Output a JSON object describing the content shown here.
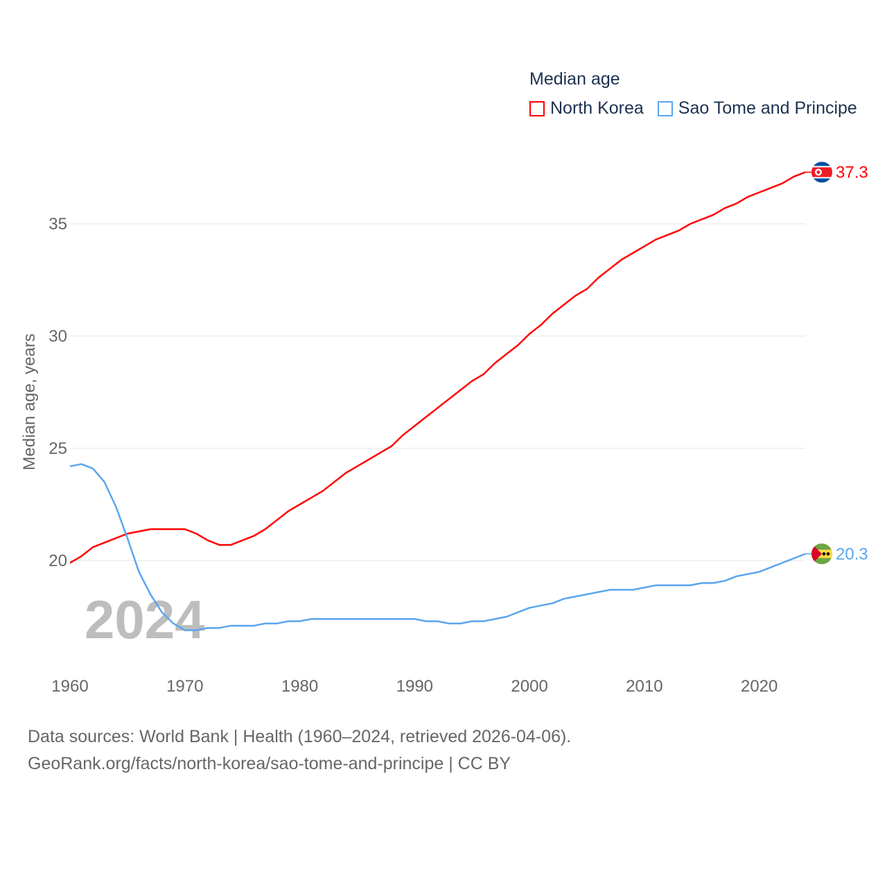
{
  "chart_data": {
    "type": "line",
    "title": "Median age",
    "ylabel": "Median age, years",
    "xlabel": "",
    "xlim": [
      1960,
      2024
    ],
    "ylim": [
      16.6,
      38
    ],
    "xticks": [
      1960,
      1970,
      1980,
      1990,
      2000,
      2010,
      2020
    ],
    "yticks": [
      20,
      25,
      30,
      35
    ],
    "grid": true,
    "legend_placement": "top-right",
    "year_label": "2024",
    "x": [
      1960,
      1961,
      1962,
      1963,
      1964,
      1965,
      1966,
      1967,
      1968,
      1969,
      1970,
      1971,
      1972,
      1973,
      1974,
      1975,
      1976,
      1977,
      1978,
      1979,
      1980,
      1981,
      1982,
      1983,
      1984,
      1985,
      1986,
      1987,
      1988,
      1989,
      1990,
      1991,
      1992,
      1993,
      1994,
      1995,
      1996,
      1997,
      1998,
      1999,
      2000,
      2001,
      2002,
      2003,
      2004,
      2005,
      2006,
      2007,
      2008,
      2009,
      2010,
      2011,
      2012,
      2013,
      2014,
      2015,
      2016,
      2017,
      2018,
      2019,
      2020,
      2021,
      2022,
      2023,
      2024
    ],
    "series": [
      {
        "name": "North Korea",
        "color": "#ff0000",
        "end_label": "37.3",
        "values": [
          19.9,
          20.2,
          20.6,
          20.8,
          21.0,
          21.2,
          21.3,
          21.4,
          21.4,
          21.4,
          21.4,
          21.2,
          20.9,
          20.7,
          20.7,
          20.9,
          21.1,
          21.4,
          21.8,
          22.2,
          22.5,
          22.8,
          23.1,
          23.5,
          23.9,
          24.2,
          24.5,
          24.8,
          25.1,
          25.6,
          26.0,
          26.4,
          26.8,
          27.2,
          27.6,
          28.0,
          28.3,
          28.8,
          29.2,
          29.6,
          30.1,
          30.5,
          31.0,
          31.4,
          31.8,
          32.1,
          32.6,
          33.0,
          33.4,
          33.7,
          34.0,
          34.3,
          34.5,
          34.7,
          35.0,
          35.2,
          35.4,
          35.7,
          35.9,
          36.2,
          36.4,
          36.6,
          36.8,
          37.1,
          37.3
        ]
      },
      {
        "name": "Sao Tome and Principe",
        "color": "#5aa5ef",
        "end_label": "20.3",
        "values": [
          24.2,
          24.3,
          24.1,
          23.5,
          22.4,
          21.0,
          19.5,
          18.5,
          17.7,
          17.2,
          16.9,
          16.9,
          17.0,
          17.0,
          17.1,
          17.1,
          17.1,
          17.2,
          17.2,
          17.3,
          17.3,
          17.4,
          17.4,
          17.4,
          17.4,
          17.4,
          17.4,
          17.4,
          17.4,
          17.4,
          17.4,
          17.3,
          17.3,
          17.2,
          17.2,
          17.3,
          17.3,
          17.4,
          17.5,
          17.7,
          17.9,
          18.0,
          18.1,
          18.3,
          18.4,
          18.5,
          18.6,
          18.7,
          18.7,
          18.7,
          18.8,
          18.9,
          18.9,
          18.9,
          18.9,
          19.0,
          19.0,
          19.1,
          19.3,
          19.4,
          19.5,
          19.7,
          19.9,
          20.1,
          20.3
        ]
      }
    ]
  },
  "source": {
    "line1": "Data sources: World Bank | Health (1960–2024, retrieved 2026-04-06).",
    "line2": "GeoRank.org/facts/north-korea/sao-tome-and-principe | CC BY"
  }
}
